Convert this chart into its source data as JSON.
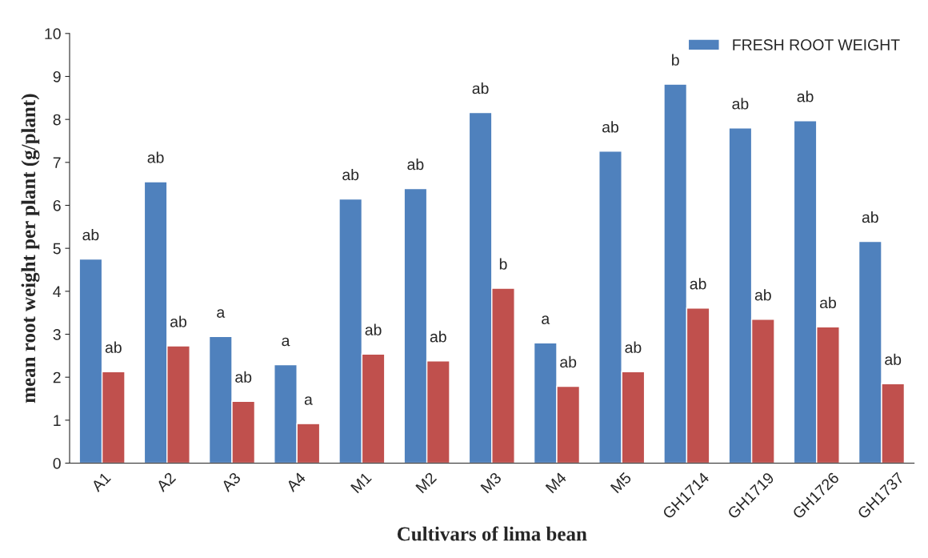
{
  "chart_data": {
    "type": "bar",
    "xlabel": "Cultivars of lima bean",
    "ylabel": "mean root weight per plant (g/plant)",
    "categories": [
      "A1",
      "A2",
      "A3",
      "A4",
      "M1",
      "M2",
      "M3",
      "M4",
      "M5",
      "GH1714",
      "GH1719",
      "GH1726",
      "GH1737"
    ],
    "series": [
      {
        "name": "FRESH ROOT WEIGHT",
        "color": "#4f81bd",
        "values": [
          4.75,
          6.55,
          2.95,
          2.29,
          6.15,
          6.39,
          8.16,
          2.8,
          7.26,
          8.82,
          7.8,
          7.97,
          5.16
        ],
        "value_labels": [
          "ab",
          "ab",
          "a",
          "a",
          "ab",
          "ab",
          "ab",
          "a",
          "ab",
          "b",
          "ab",
          "ab",
          "ab"
        ]
      },
      {
        "color": "#c0504d",
        "values": [
          2.13,
          2.73,
          1.44,
          0.92,
          2.54,
          2.38,
          4.07,
          1.79,
          2.13,
          3.61,
          3.35,
          3.17,
          1.85
        ],
        "value_labels": [
          "ab",
          "ab",
          "ab",
          "a",
          "ab",
          "ab",
          "b",
          "ab",
          "ab",
          "ab",
          "ab",
          "ab",
          "ab"
        ]
      }
    ],
    "ylim": [
      0,
      10
    ],
    "yticks": [
      0,
      1,
      2,
      3,
      4,
      5,
      6,
      7,
      8,
      9,
      10
    ],
    "grid": false,
    "legend": "top right"
  }
}
